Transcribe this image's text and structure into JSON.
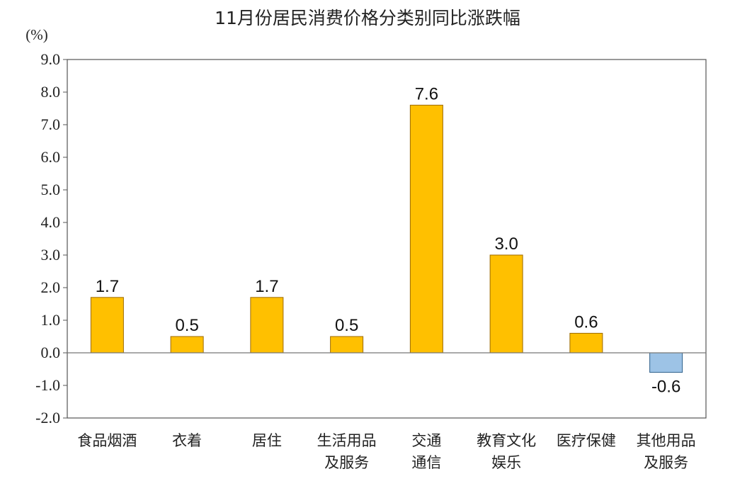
{
  "colors": {
    "positive": "#FFC000",
    "positive_edge": "#9C6A00",
    "negative": "#9DC3E6",
    "negative_edge": "#2E5F8A",
    "axis": "#777777",
    "frame": "#555555"
  },
  "chart_data": {
    "type": "bar",
    "title": "11月份居民消费价格分类别同比涨跌幅",
    "ylabel": "(%)",
    "xlabel": "",
    "ylim": [
      -2.0,
      9.0
    ],
    "ytick_step": 1.0,
    "ytick_labels": [
      "9.0",
      "8.0",
      "7.0",
      "6.0",
      "5.0",
      "4.0",
      "3.0",
      "2.0",
      "1.0",
      "0.0",
      "-1.0",
      "-2.0"
    ],
    "grid": false,
    "legend": "none",
    "categories": [
      [
        "食品烟酒"
      ],
      [
        "衣着"
      ],
      [
        "居住"
      ],
      [
        "生活用品",
        "及服务"
      ],
      [
        "交通",
        "通信"
      ],
      [
        "教育文化",
        "娱乐"
      ],
      [
        "医疗保健"
      ],
      [
        "其他用品",
        "及服务"
      ]
    ],
    "values": [
      1.7,
      0.5,
      1.7,
      0.5,
      7.6,
      3.0,
      0.6,
      -0.6
    ],
    "value_labels": [
      "1.7",
      "0.5",
      "1.7",
      "0.5",
      "7.6",
      "3.0",
      "0.6",
      "-0.6"
    ]
  }
}
